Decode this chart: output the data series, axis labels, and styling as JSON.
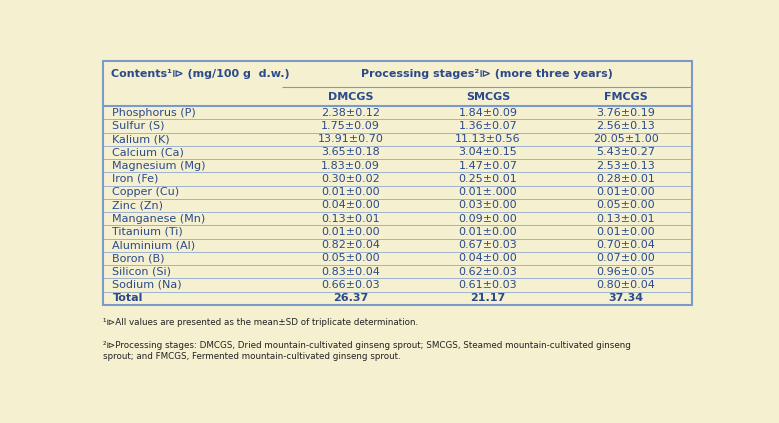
{
  "background_color": "#f5f0d0",
  "header1_col0": "Contents¹⧐ (mg/100 g  d.w.)",
  "header1_col1": "Processing stages²⧐ (more three years)",
  "header2": [
    "",
    "DMCGS",
    "SMCGS",
    "FMCGS"
  ],
  "rows": [
    [
      "Phosphorus (P)",
      "2.38±0.12",
      "1.84±0.09",
      "3.76±0.19"
    ],
    [
      "Sulfur (S)",
      "1.75±0.09",
      "1.36±0.07",
      "2.56±0.13"
    ],
    [
      "Kalium (K)",
      "13.91±0.70",
      "11.13±0.56",
      "20.05±1.00"
    ],
    [
      "Calcium (Ca)",
      "3.65±0.18",
      "3.04±0.15",
      "5.43±0.27"
    ],
    [
      "Magnesium (Mg)",
      "1.83±0.09",
      "1.47±0.07",
      "2.53±0.13"
    ],
    [
      "Iron (Fe)",
      "0.30±0.02",
      "0.25±0.01",
      "0.28±0.01"
    ],
    [
      "Copper (Cu)",
      "0.01±0.00",
      "0.01±.000",
      "0.01±0.00"
    ],
    [
      "Zinc (Zn)",
      "0.04±0.00",
      "0.03±0.00",
      "0.05±0.00"
    ],
    [
      "Manganese (Mn)",
      "0.13±0.01",
      "0.09±0.00",
      "0.13±0.01"
    ],
    [
      "Titanium (Ti)",
      "0.01±0.00",
      "0.01±0.00",
      "0.01±0.00"
    ],
    [
      "Aluminium (Al)",
      "0.82±0.04",
      "0.67±0.03",
      "0.70±0.04"
    ],
    [
      "Boron (B)",
      "0.05±0.00",
      "0.04±0.00",
      "0.07±0.00"
    ],
    [
      "Silicon (Si)",
      "0.83±0.04",
      "0.62±0.03",
      "0.96±0.05"
    ],
    [
      "Sodium (Na)",
      "0.66±0.03",
      "0.61±0.03",
      "0.80±0.04"
    ],
    [
      "Total",
      "26.37",
      "21.17",
      "37.34"
    ]
  ],
  "footnote1": "¹⧐All values are presented as the mean±SD of triplicate determination.",
  "footnote2": "²⧐Processing stages: DMCGS, Dried mountain-cultivated ginseng sprout; SMCGS, Steamed mountain-cultivated ginseng sprout; and FMCGS, Fermented mountain-cultivated ginseng sprout.",
  "text_color": "#2b4a8c",
  "footnote_color": "#222222",
  "outer_border_color": "#7b9acc",
  "inner_line_color": "#7b9acc",
  "font_size": 8.0,
  "header_font_size": 8.0
}
